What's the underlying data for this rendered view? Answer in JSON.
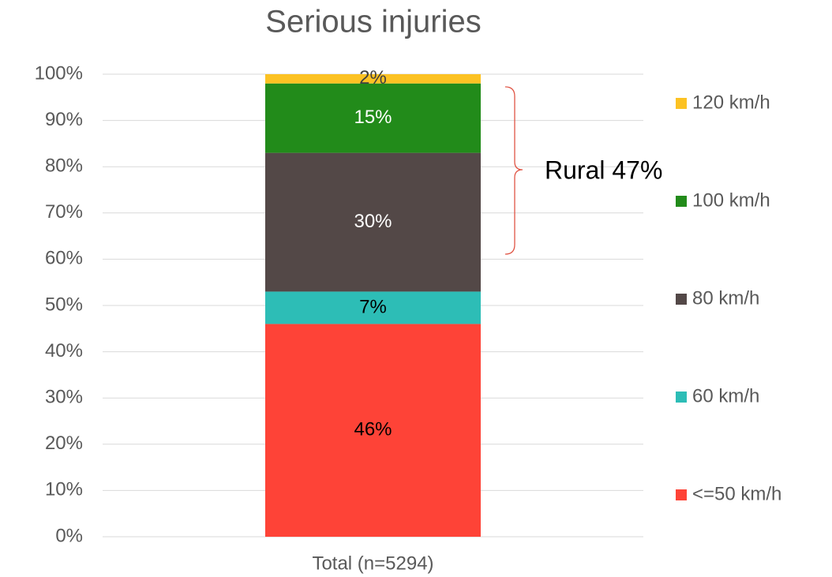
{
  "chart_data": {
    "type": "stacked_bar",
    "title": "Serious injuries",
    "categories": [
      "Total (n=5294)"
    ],
    "series": [
      {
        "name": "<=50 km/h",
        "color": "#fe4337",
        "label_color": "#000000",
        "values": [
          46
        ],
        "value_labels": [
          "46%"
        ]
      },
      {
        "name": "60 km/h",
        "color": "#2dbdb6",
        "label_color": "#000000",
        "values": [
          7
        ],
        "value_labels": [
          "7%"
        ]
      },
      {
        "name": "80 km/h",
        "color": "#534847",
        "label_color": "#ffffff",
        "values": [
          30
        ],
        "value_labels": [
          "30%"
        ]
      },
      {
        "name": "100 km/h",
        "color": "#228b1a",
        "label_color": "#ffffff",
        "values": [
          15
        ],
        "value_labels": [
          "15%"
        ]
      },
      {
        "name": "120 km/h",
        "color": "#fcc223",
        "label_color": "#404040",
        "values": [
          2
        ],
        "value_labels": [
          "2%"
        ]
      }
    ],
    "ylim": [
      0,
      100
    ],
    "yticks": [
      {
        "value": 0,
        "label": "0%"
      },
      {
        "value": 10,
        "label": "10%"
      },
      {
        "value": 20,
        "label": "20%"
      },
      {
        "value": 30,
        "label": "30%"
      },
      {
        "value": 40,
        "label": "40%"
      },
      {
        "value": 50,
        "label": "50%"
      },
      {
        "value": 60,
        "label": "60%"
      },
      {
        "value": 70,
        "label": "70%"
      },
      {
        "value": 80,
        "label": "80%"
      },
      {
        "value": 90,
        "label": "90%"
      },
      {
        "value": 100,
        "label": "100%"
      }
    ],
    "grid": true,
    "legend": "right",
    "annotation": "Rural 47%"
  }
}
